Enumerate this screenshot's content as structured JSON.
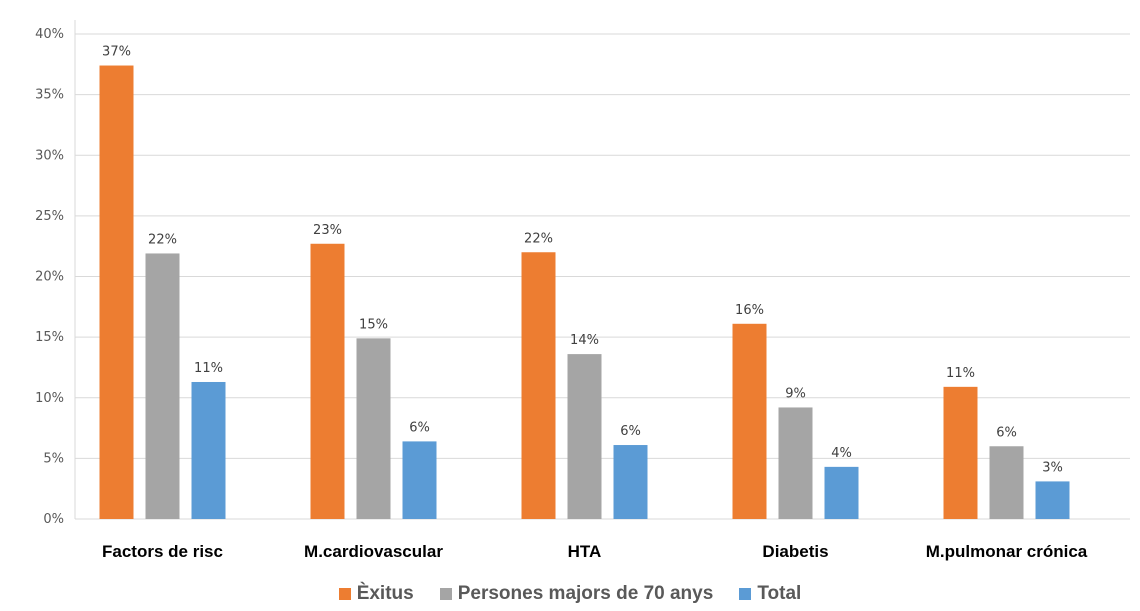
{
  "chart_data": {
    "type": "bar",
    "categories": [
      "Factors de risc",
      "M.cardiovascular",
      "HTA",
      "Diabetis",
      "M.pulmonar crónica"
    ],
    "series": [
      {
        "name": "Èxitus",
        "color": "#ED7D31",
        "values": [
          37.4,
          22.7,
          22.0,
          16.1,
          10.9
        ],
        "labels": [
          "37%",
          "23%",
          "22%",
          "16%",
          "11%"
        ]
      },
      {
        "name": "Persones majors de 70 anys",
        "color": "#A5A5A5",
        "values": [
          21.9,
          14.9,
          13.6,
          9.2,
          6.0
        ],
        "labels": [
          "22%",
          "15%",
          "14%",
          "9%",
          "6%"
        ]
      },
      {
        "name": "Total",
        "color": "#5B9BD5",
        "values": [
          11.3,
          6.4,
          6.1,
          4.3,
          3.1
        ],
        "labels": [
          "11%",
          "6%",
          "6%",
          "4%",
          "3%"
        ]
      }
    ],
    "yticks": [
      "0%",
      "5%",
      "10%",
      "15%",
      "20%",
      "25%",
      "30%",
      "35%",
      "40%"
    ],
    "ylim": [
      0,
      40
    ],
    "grid": true,
    "legend_position": "bottom"
  }
}
